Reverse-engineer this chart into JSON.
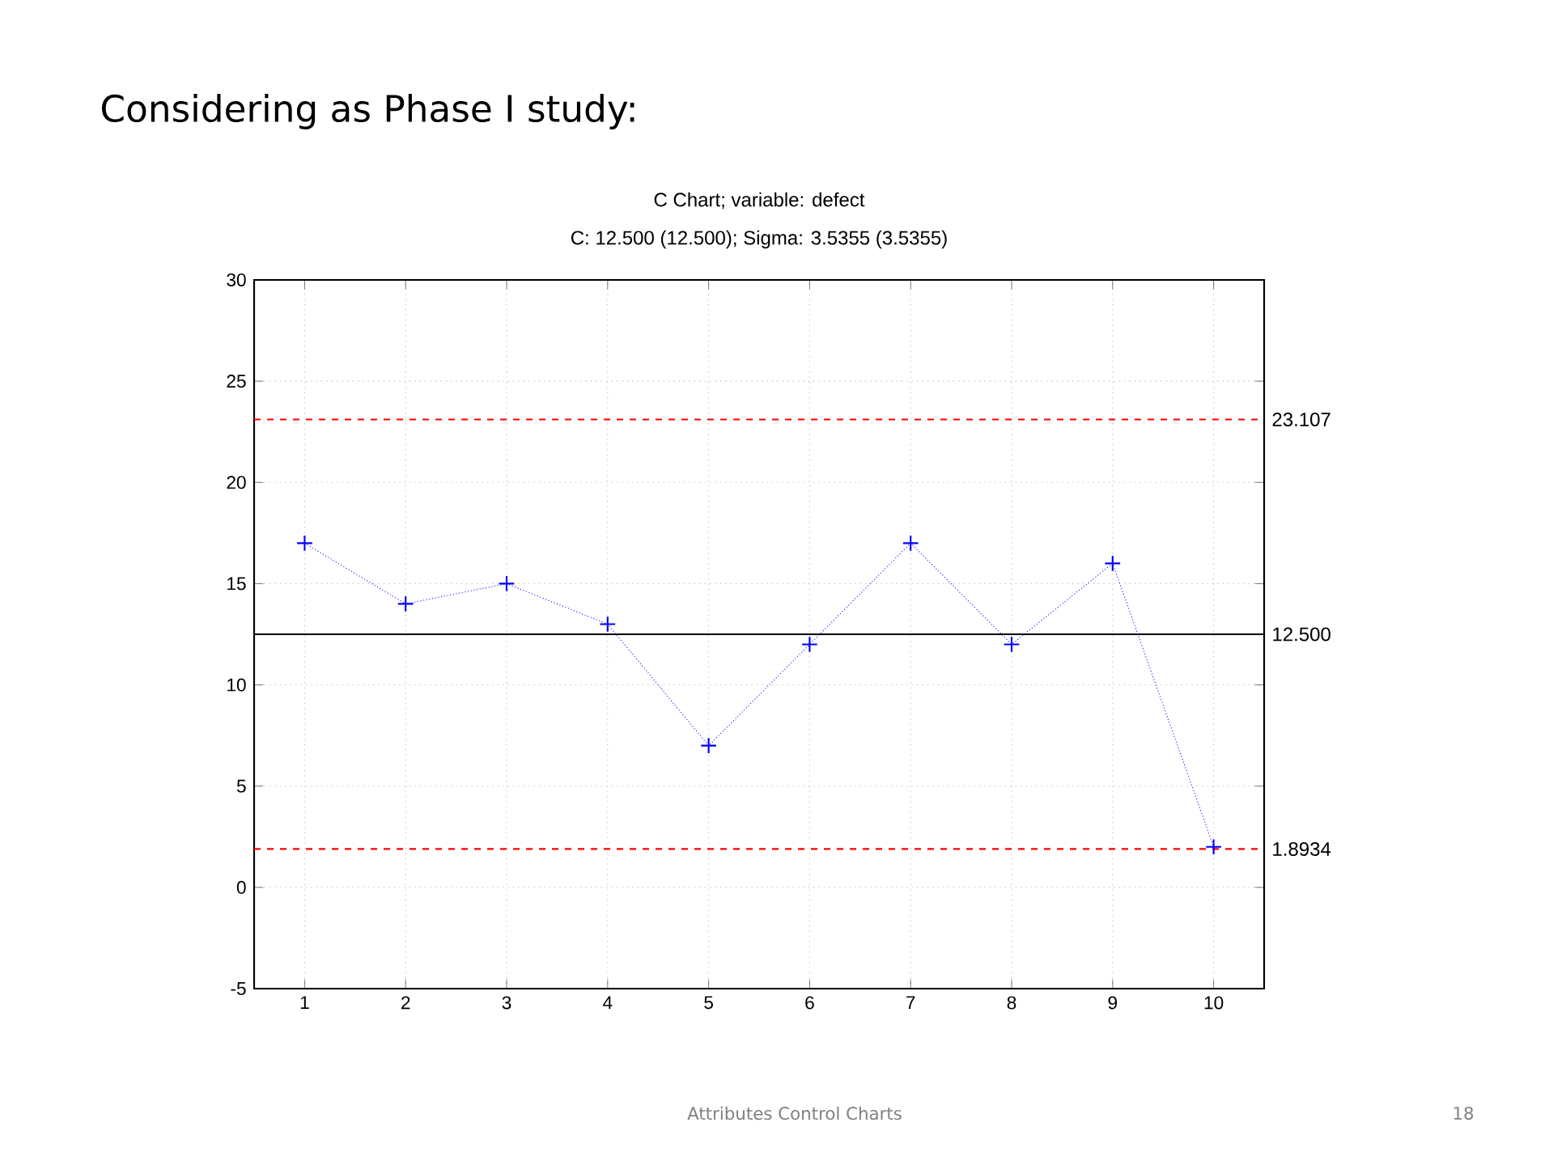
{
  "chart_data": {
    "type": "line",
    "title": "Considering as Phase I study:",
    "subtitle": "C Chart; variable:  defect",
    "annotations": [
      "C: 12.500 (12.500); Sigma: 3.5355 (3.5355)",
      "Attributes Control Charts",
      "18"
    ],
    "x": [
      1,
      2,
      3,
      4,
      5,
      6,
      7,
      8,
      9,
      10
    ],
    "series": [
      {
        "color": "#0000ff",
        "values": [
          17,
          14,
          15,
          13,
          7,
          12,
          17,
          12,
          16,
          2
        ]
      }
    ],
    "xlim": [
      0.5,
      10.5
    ],
    "xticks": [
      1,
      2,
      3,
      4,
      5,
      6,
      7,
      8,
      9,
      10
    ],
    "ylim": [
      -5,
      30
    ],
    "yticks": [
      -5,
      0,
      5,
      10,
      15,
      20,
      25,
      30
    ],
    "ref_lines": [
      {
        "axis": "y",
        "value": 23.107,
        "label": "23.107",
        "color": "#ff0000",
        "line_style": "dashed"
      },
      {
        "axis": "y",
        "value": 12.5,
        "label": "12.500",
        "color": "#000000",
        "line_style": "solid"
      },
      {
        "axis": "y",
        "value": 1.8934,
        "label": "1.8934",
        "color": "#ff0000",
        "line_style": "dashed"
      }
    ],
    "grid": true,
    "marker": "cross",
    "line_style": "dotted"
  }
}
